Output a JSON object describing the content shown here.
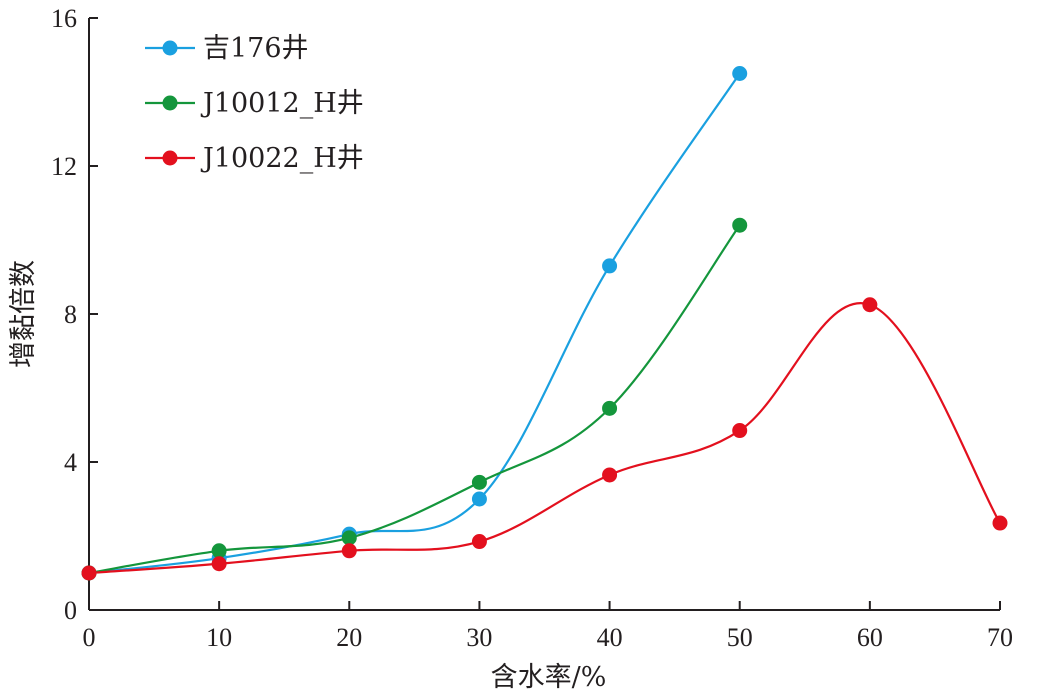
{
  "chart_data": {
    "type": "line",
    "xlabel": "含水率/%",
    "ylabel": "增黏倍数",
    "xlim": [
      0,
      70
    ],
    "ylim": [
      0,
      16
    ],
    "xticks": [
      0,
      10,
      20,
      30,
      40,
      50,
      60,
      70
    ],
    "yticks": [
      0,
      4,
      8,
      12,
      16
    ],
    "grid": false,
    "legend_position": "top-left",
    "smooth": true,
    "series": [
      {
        "name": "吉176井",
        "color": "#1aa0e0",
        "x": [
          0,
          10,
          20,
          30,
          40,
          50
        ],
        "y": [
          1.0,
          1.4,
          2.05,
          3.0,
          9.3,
          14.5
        ]
      },
      {
        "name": "J10012_H井",
        "color": "#14963c",
        "x": [
          0,
          10,
          20,
          30,
          40,
          50
        ],
        "y": [
          1.0,
          1.6,
          1.95,
          3.45,
          5.45,
          10.4
        ]
      },
      {
        "name": "J10022_H井",
        "color": "#e3101e",
        "x": [
          0,
          10,
          20,
          30,
          40,
          50,
          60,
          70
        ],
        "y": [
          1.0,
          1.25,
          1.6,
          1.85,
          3.65,
          4.85,
          8.25,
          2.35
        ]
      }
    ]
  }
}
